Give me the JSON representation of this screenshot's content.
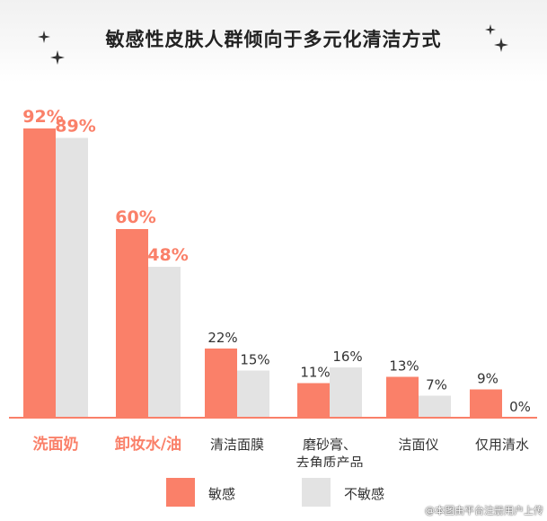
{
  "chart_data": {
    "type": "bar",
    "title": "敏感性皮肤人群倾向于多元化清洁方式",
    "categories": [
      "洗面奶",
      "卸妆水/油",
      "清洁面膜",
      "磨砂膏、\n去角质产品",
      "洁面仪",
      "仅用清水"
    ],
    "highlighted_categories": [
      0,
      1
    ],
    "series": [
      {
        "name": "敏感",
        "values": [
          92,
          60,
          22,
          11,
          13,
          9
        ],
        "labels": [
          "92%",
          "60%",
          "22%",
          "11%",
          "13%",
          "9%"
        ],
        "color": "#FA8069"
      },
      {
        "name": "不敏感",
        "values": [
          89,
          48,
          15,
          16,
          7,
          0
        ],
        "labels": [
          "89%",
          "48%",
          "15%",
          "16%",
          "7%",
          "0%"
        ],
        "color": "#E3E3E3"
      }
    ],
    "ylim": [
      0,
      100
    ],
    "grid": false,
    "legend_position": "bottom"
  },
  "watermark": "@本图由平台注册用户上传",
  "colors": {
    "accent": "#FA8069",
    "secondary": "#E3E3E3",
    "baseline": "#FA8069",
    "title_text": "#222222",
    "highlight_label": "#FA8069",
    "label_text": "#333333"
  },
  "icons": [
    "sparkle-icon",
    "sparkle-icon",
    "sparkle-icon",
    "sparkle-icon"
  ]
}
